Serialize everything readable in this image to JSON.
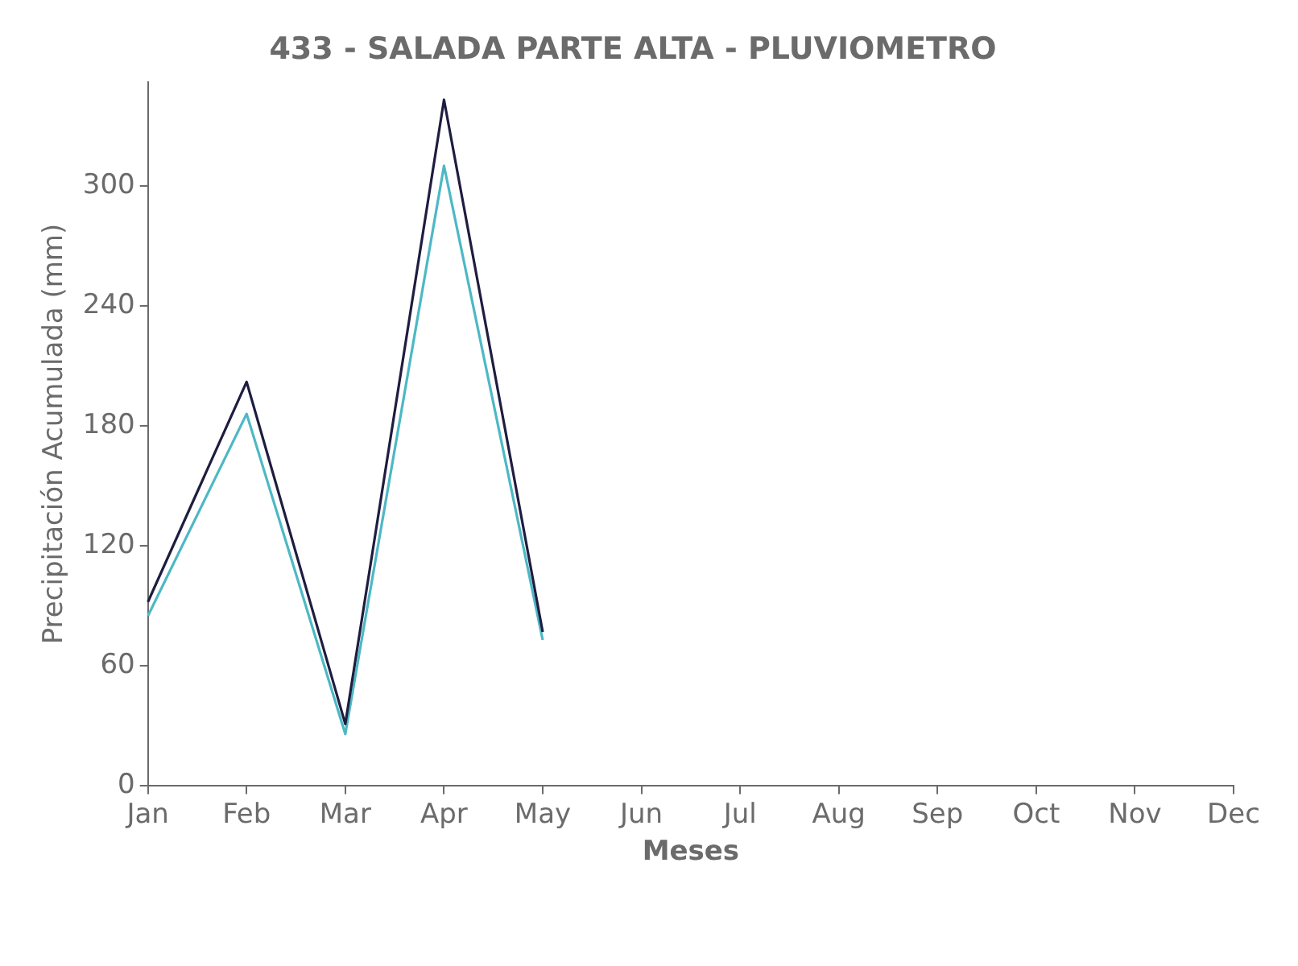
{
  "chart_data": {
    "type": "line",
    "title": "433 - SALADA PARTE ALTA - PLUVIOMETRO",
    "xlabel": "Meses",
    "ylabel": "Precipitación Acumulada (mm)",
    "categories": [
      "Jan",
      "Feb",
      "Mar",
      "Apr",
      "May",
      "Jun",
      "Jul",
      "Aug",
      "Sep",
      "Oct",
      "Nov",
      "Dec"
    ],
    "series": [
      {
        "color": "#1f1d3f",
        "values": [
          92,
          202,
          31,
          343,
          77,
          null,
          null,
          null,
          null,
          null,
          null,
          null
        ]
      },
      {
        "color": "#4db8c4",
        "values": [
          85,
          186,
          26,
          310,
          73,
          null,
          null,
          null,
          null,
          null,
          null,
          null
        ]
      }
    ],
    "ylim": [
      0,
      352
    ],
    "yticks": [
      0,
      60,
      120,
      180,
      240,
      300
    ],
    "grid": false,
    "legend": false,
    "marker": "none",
    "line_style": "solid"
  }
}
